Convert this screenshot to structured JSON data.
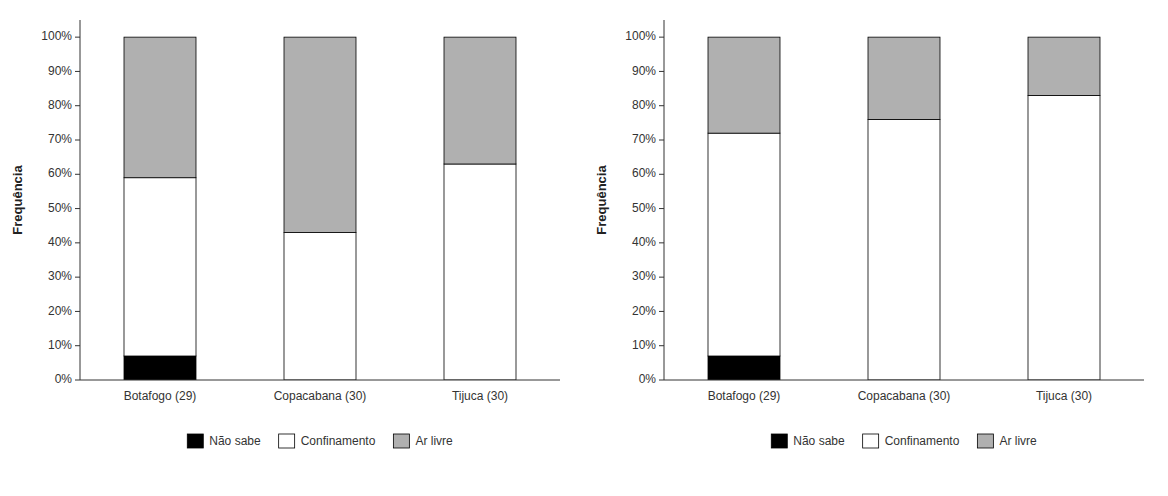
{
  "chart_data": [
    {
      "type": "bar",
      "stacked": true,
      "y_label": "Frequência",
      "categories": [
        "Botafogo (29)",
        "Copacabana (30)",
        "Tijuca (30)"
      ],
      "series": [
        {
          "name": "Não sabe",
          "color": "#000000",
          "values": [
            7,
            0,
            0
          ]
        },
        {
          "name": "Confinamento",
          "color": "#ffffff",
          "values": [
            52,
            43,
            63
          ]
        },
        {
          "name": "Ar livre",
          "color": "#b0b0b0",
          "values": [
            41,
            57,
            37
          ]
        }
      ],
      "ylim": [
        0,
        105
      ],
      "yticks": [
        {
          "value": 0,
          "label": "0%"
        },
        {
          "value": 10,
          "label": "10%"
        },
        {
          "value": 20,
          "label": "20%"
        },
        {
          "value": 30,
          "label": "30%"
        },
        {
          "value": 40,
          "label": "40%"
        },
        {
          "value": 50,
          "label": "50%"
        },
        {
          "value": 60,
          "label": "60%"
        },
        {
          "value": 70,
          "label": "70%"
        },
        {
          "value": 80,
          "label": "80%"
        },
        {
          "value": 90,
          "label": "90%"
        },
        {
          "value": 100,
          "label": "100%"
        }
      ],
      "grid": false,
      "legend": "bottom"
    },
    {
      "type": "bar",
      "stacked": true,
      "y_label": "Frequência",
      "categories": [
        "Botafogo (29)",
        "Copacabana (30)",
        "Tijuca (30)"
      ],
      "series": [
        {
          "name": "Não sabe",
          "color": "#000000",
          "values": [
            7,
            0,
            0
          ]
        },
        {
          "name": "Confinamento",
          "color": "#ffffff",
          "values": [
            65,
            76,
            83
          ]
        },
        {
          "name": "Ar livre",
          "color": "#b0b0b0",
          "values": [
            28,
            24,
            17
          ]
        }
      ],
      "ylim": [
        0,
        105
      ],
      "yticks": [
        {
          "value": 0,
          "label": "0%"
        },
        {
          "value": 10,
          "label": "10%"
        },
        {
          "value": 20,
          "label": "20%"
        },
        {
          "value": 30,
          "label": "30%"
        },
        {
          "value": 40,
          "label": "40%"
        },
        {
          "value": 50,
          "label": "50%"
        },
        {
          "value": 60,
          "label": "60%"
        },
        {
          "value": 70,
          "label": "70%"
        },
        {
          "value": 80,
          "label": "80%"
        },
        {
          "value": 90,
          "label": "90%"
        },
        {
          "value": 100,
          "label": "100%"
        }
      ],
      "grid": false,
      "legend": "bottom"
    }
  ]
}
